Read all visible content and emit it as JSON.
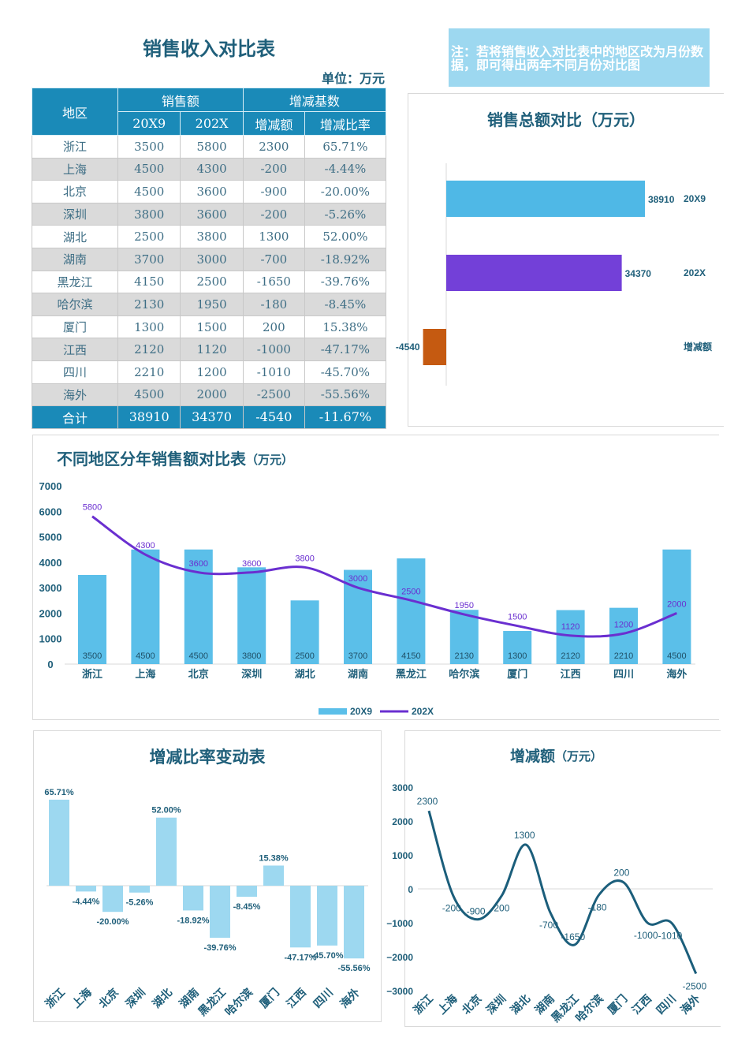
{
  "title": "销售收入对比表",
  "unit": "单位：万元",
  "note": "注：若将销售收入对比表中的地区改为月份数据，即可得出两年不同月份对比图",
  "table": {
    "headers": {
      "region": "地区",
      "sales": "销售额",
      "y1": "20X9",
      "y2": "202X",
      "change": "增减基数",
      "diff": "增减额",
      "rate": "增减比率"
    },
    "rows": [
      [
        "浙江",
        "3500",
        "5800",
        "2300",
        "65.71%"
      ],
      [
        "上海",
        "4500",
        "4300",
        "-200",
        "-4.44%"
      ],
      [
        "北京",
        "4500",
        "3600",
        "-900",
        "-20.00%"
      ],
      [
        "深圳",
        "3800",
        "3600",
        "-200",
        "-5.26%"
      ],
      [
        "湖北",
        "2500",
        "3800",
        "1300",
        "52.00%"
      ],
      [
        "湖南",
        "3700",
        "3000",
        "-700",
        "-18.92%"
      ],
      [
        "黑龙江",
        "4150",
        "2500",
        "-1650",
        "-39.76%"
      ],
      [
        "哈尔滨",
        "2130",
        "1950",
        "-180",
        "-8.45%"
      ],
      [
        "厦门",
        "1300",
        "1500",
        "200",
        "15.38%"
      ],
      [
        "江西",
        "2120",
        "1120",
        "-1000",
        "-47.17%"
      ],
      [
        "四川",
        "2210",
        "1200",
        "-1010",
        "-45.70%"
      ],
      [
        "海外",
        "4500",
        "2000",
        "-2500",
        "-55.56%"
      ]
    ],
    "total": [
      "合计",
      "38910",
      "34370",
      "-4540",
      "-11.67%"
    ]
  },
  "chart_data": [
    {
      "type": "bar",
      "orientation": "horizontal",
      "title": "销售总额对比（万元）",
      "categories": [
        "20X9",
        "202X",
        "增减额"
      ],
      "values": [
        38910,
        34370,
        -4540
      ],
      "colors": [
        "#4fb8e6",
        "#7340d8",
        "#c55a11"
      ]
    },
    {
      "type": "bar+line",
      "title": "不同地区分年销售额对比表",
      "title_suffix": "（万元）",
      "categories": [
        "浙江",
        "上海",
        "北京",
        "深圳",
        "湖北",
        "湖南",
        "黑龙江",
        "哈尔滨",
        "厦门",
        "江西",
        "四川",
        "海外"
      ],
      "yticks": [
        "0",
        "1000",
        "2000",
        "3000",
        "4000",
        "5000",
        "6000",
        "7000"
      ],
      "ylim": [
        0,
        7000
      ],
      "legend": "bottom",
      "series": [
        {
          "name": "20X9",
          "type": "bar",
          "color": "#5bbfe9",
          "values": [
            3500,
            4500,
            4500,
            3800,
            2500,
            3700,
            4150,
            2130,
            1300,
            2120,
            2210,
            4500
          ]
        },
        {
          "name": "202X",
          "type": "line",
          "color": "#6a2fd0",
          "values": [
            5800,
            4300,
            3600,
            3600,
            3800,
            3000,
            2500,
            1950,
            1500,
            1120,
            1200,
            2000
          ]
        }
      ]
    },
    {
      "type": "bar",
      "title": "增减比率变动表",
      "categories": [
        "浙江",
        "上海",
        "北京",
        "深圳",
        "湖北",
        "湖南",
        "黑龙江",
        "哈尔滨",
        "厦门",
        "江西",
        "四川",
        "海外"
      ],
      "values": [
        65.71,
        -4.44,
        -20.0,
        -5.26,
        52.0,
        -18.92,
        -39.76,
        -8.45,
        15.38,
        -47.17,
        -45.7,
        -55.56
      ],
      "labels": [
        "65.71%",
        "-4.44%",
        "-20.00%",
        "-5.26%",
        "52.00%",
        "-18.92%",
        "-39.76%",
        "-8.45%",
        "15.38%",
        "-47.17%",
        "-45.70%",
        "-55.56%"
      ],
      "color": "#9dd8f0"
    },
    {
      "type": "line",
      "smooth": true,
      "title": "增减额",
      "title_suffix": "（万元）",
      "categories": [
        "浙江",
        "上海",
        "北京",
        "深圳",
        "湖北",
        "湖南",
        "黑龙江",
        "哈尔滨",
        "厦门",
        "江西",
        "四川",
        "海外"
      ],
      "values": [
        2300,
        -200,
        -900,
        -200,
        1300,
        -700,
        -1650,
        -180,
        200,
        -1000,
        -1010,
        -2500
      ],
      "yticks": [
        "3000",
        "2000",
        "1000",
        "0",
        "−1000",
        "−2000",
        "−3000"
      ],
      "ylim": [
        -3000,
        3000
      ],
      "color": "#1b5e7b"
    }
  ]
}
